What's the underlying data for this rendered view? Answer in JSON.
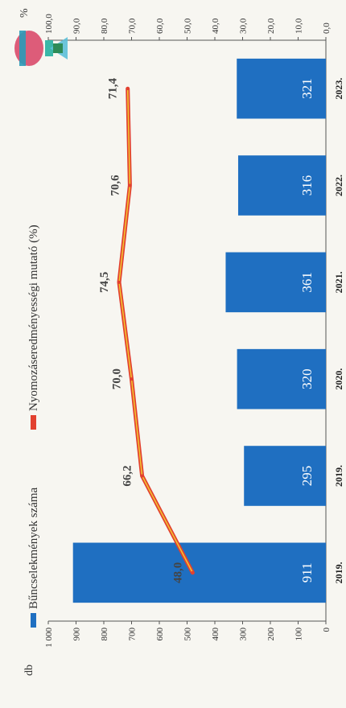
{
  "chart_data": {
    "type": "bar+line",
    "categories": [
      "2019.",
      "2019.",
      "2020.",
      "2021.",
      "2022.",
      "2023."
    ],
    "series": [
      {
        "name": "Bűncselekmények száma",
        "type": "bar",
        "axis": "left",
        "values": [
          911,
          295,
          320,
          361,
          316,
          321
        ],
        "color": "#1f6fc1"
      },
      {
        "name": "Nyomozáseredményességi mutató (%)",
        "type": "line",
        "axis": "right",
        "values": [
          48.0,
          66.2,
          70.0,
          74.5,
          70.6,
          71.4
        ],
        "labels": [
          "48,0",
          "66,2",
          "70,0",
          "74,5",
          "70,6",
          "71,4"
        ],
        "color": "#e2412f",
        "highlight": "#f2c230"
      }
    ],
    "left_axis": {
      "unit": "db",
      "ylim": [
        0,
        1000
      ],
      "ticks": [
        "0",
        "100",
        "200",
        "300",
        "400",
        "500",
        "600",
        "700",
        "800",
        "900",
        "1 000"
      ]
    },
    "right_axis": {
      "unit": "%",
      "ylim": [
        0,
        100
      ],
      "ticks": [
        "0,0",
        "10,0",
        "20,0",
        "30,0",
        "40,0",
        "50,0",
        "60,0",
        "70,0",
        "80,0",
        "90,0",
        "100,0"
      ]
    },
    "bar_labels": [
      "911",
      "295",
      "320",
      "361",
      "316",
      "321"
    ],
    "legend": [
      {
        "label": "Bűncselekmények száma",
        "color": "#1f6fc1"
      },
      {
        "label": "Nyomozáseredményességi mutató (%)",
        "color": "#e2412f"
      }
    ],
    "legend_position": "top",
    "grid": false
  }
}
